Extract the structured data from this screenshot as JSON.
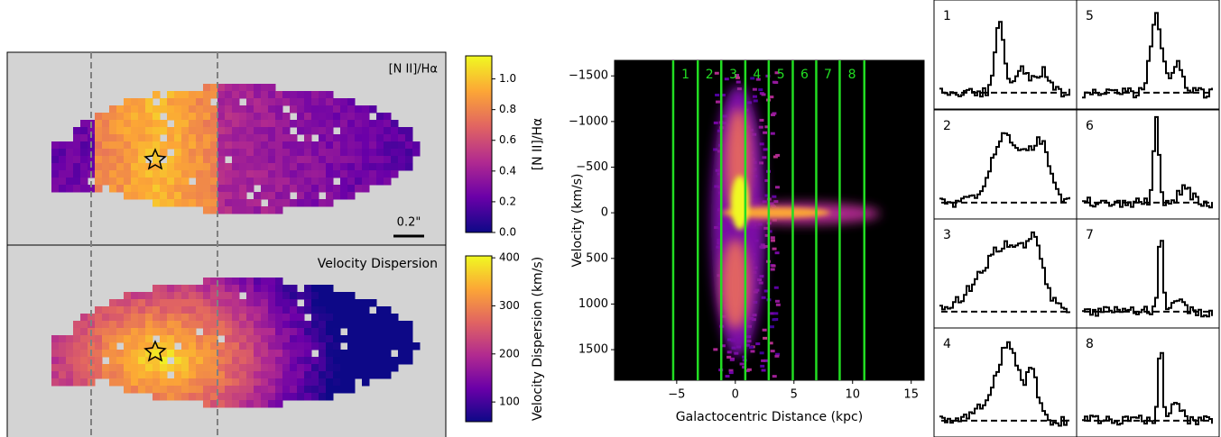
{
  "chart_data": [
    {
      "type": "map",
      "title": "[N II]/Hα",
      "scale_bar": "0.2\"",
      "colorbar": {
        "label": "[N II]/Hα",
        "ylim": [
          0,
          1.15
        ],
        "yticks": [
          {
            "value": 0,
            "label": "0.0"
          },
          0.2,
          0.4,
          0.6,
          0.8,
          {
            "value": 1,
            "label": "1.0"
          }
        ]
      }
    },
    {
      "type": "map",
      "title": "Velocity Dispersion",
      "colorbar": {
        "label": "Velocity Dispersion (km/s)",
        "ylim": [
          59,
          404
        ],
        "yticks": [
          100,
          200,
          300,
          400
        ]
      }
    },
    {
      "type": "pv",
      "xlabel": "Galactocentric Distance (kpc)",
      "ylabel": "Velocity (km/s)",
      "xlim": [
        -10.3,
        16.1
      ],
      "xticks": [
        {
          "value": -5,
          "label": "−5"
        },
        0,
        5,
        10,
        15
      ],
      "ylim": [
        -1670,
        1835
      ],
      "yticks": [
        {
          "value": -1500,
          "label": "−1500"
        },
        {
          "value": -1000,
          "label": "−1000"
        },
        {
          "value": -500,
          "label": "−500"
        },
        0,
        500,
        1000,
        1500
      ],
      "slit_edges": [
        -5.3,
        -3.2,
        -1.2,
        0.85,
        2.85,
        4.9,
        6.9,
        8.9,
        11.0
      ],
      "slit_labels": [
        "1",
        "2",
        "3",
        "4",
        "5",
        "6",
        "7",
        "8"
      ],
      "slit_color": "#22dd22"
    }
  ]
}
